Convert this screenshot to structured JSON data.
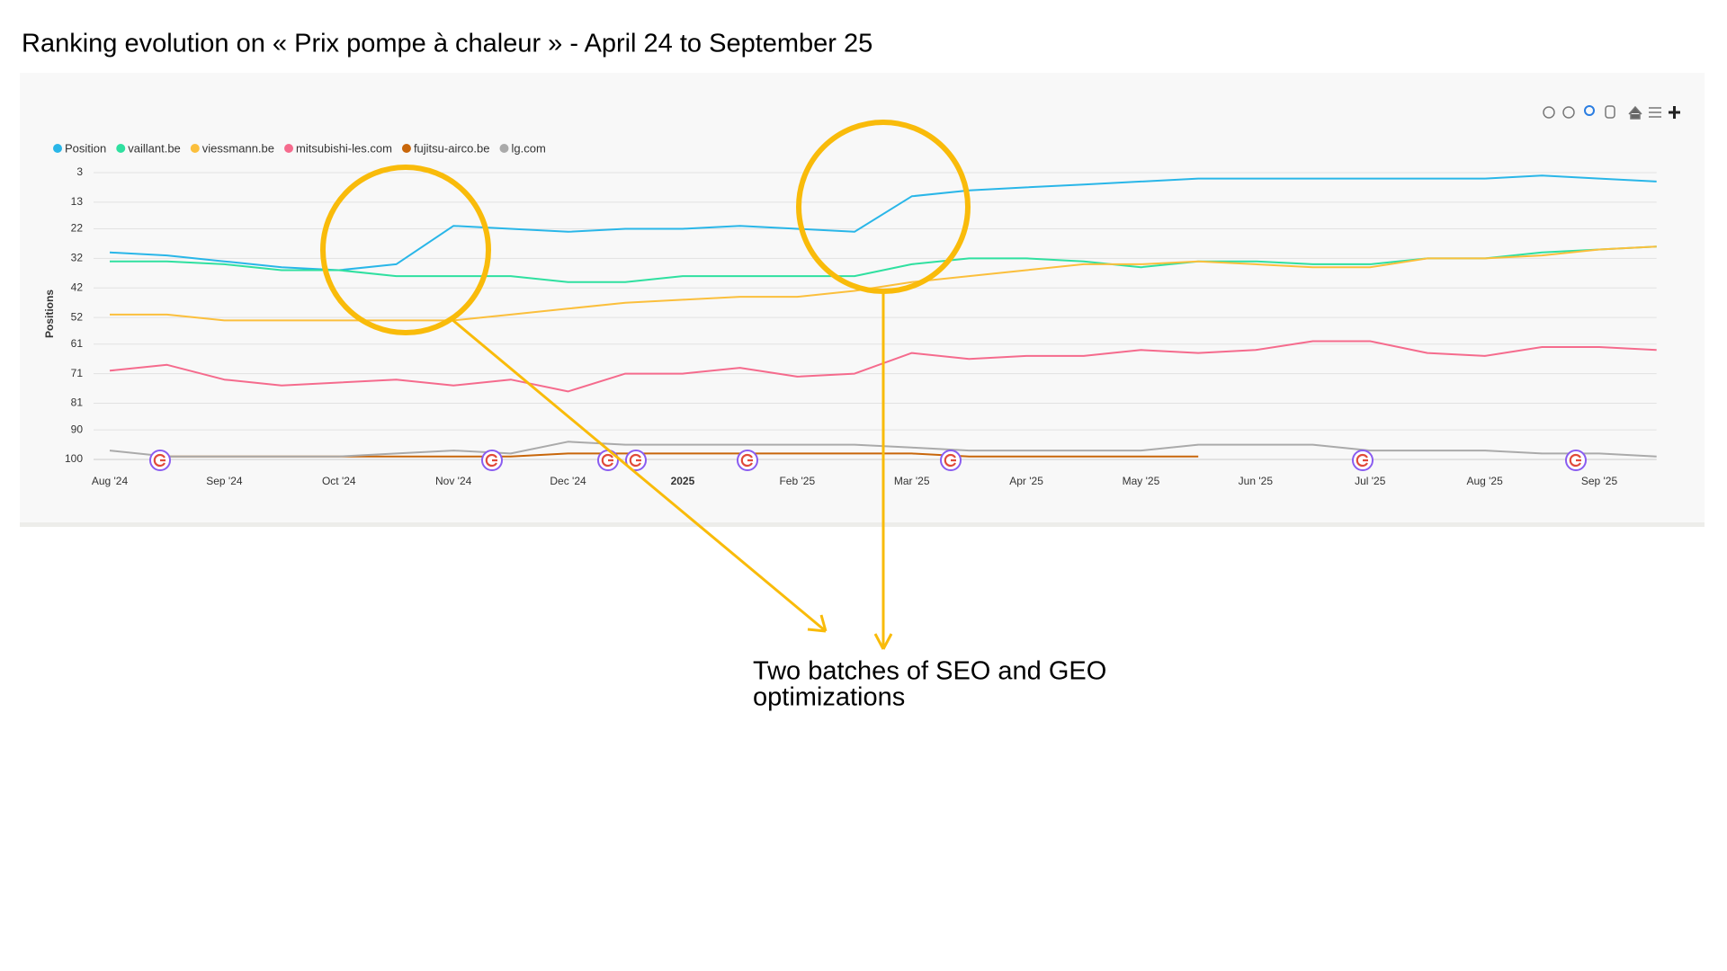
{
  "chart_data": {
    "type": "line",
    "title": "Ranking evolution on « Prix pompe à chaleur » - April 24 to September 25",
    "y_label": "Positions",
    "annotation": [
      "Two batches of SEO and GEO",
      "optimizations"
    ],
    "categories": [
      "Aug '24",
      null,
      "Sep '24",
      null,
      "Oct '24",
      null,
      "Nov '24",
      null,
      "Dec '24",
      null,
      "2025",
      null,
      "Feb '25",
      null,
      "Mar '25",
      null,
      "Apr '25",
      null,
      "May '25",
      null,
      "Jun '25",
      null,
      "Jul '25",
      null,
      "Aug '25",
      null,
      "Sep '25",
      null
    ],
    "ylim": [
      100,
      3
    ],
    "yticks": [
      3,
      13,
      22,
      32,
      42,
      52,
      61,
      71,
      81,
      90,
      100
    ],
    "grid": true,
    "series": [
      {
        "name": "Position",
        "color": "#29b6e8",
        "values": [
          30,
          31,
          33,
          35,
          36,
          34,
          21,
          22,
          23,
          22,
          22,
          21,
          22,
          23,
          11,
          9,
          8,
          7,
          6,
          5,
          5,
          5,
          5,
          5,
          5,
          4,
          5,
          6
        ]
      },
      {
        "name": "vaillant.be",
        "color": "#2fe0a0",
        "values": [
          33,
          33,
          34,
          36,
          36,
          38,
          38,
          38,
          40,
          40,
          38,
          38,
          38,
          38,
          34,
          32,
          32,
          33,
          35,
          33,
          33,
          34,
          34,
          32,
          32,
          30,
          29,
          28
        ]
      },
      {
        "name": "viessmann.be",
        "color": "#fbbf3c",
        "values": [
          51,
          51,
          53,
          53,
          53,
          53,
          53,
          51,
          49,
          47,
          46,
          45,
          45,
          43,
          40,
          38,
          36,
          34,
          34,
          33,
          34,
          35,
          35,
          32,
          32,
          31,
          29,
          28
        ]
      },
      {
        "name": "mitsubishi-les.com",
        "color": "#f56b8d",
        "values": [
          70,
          68,
          73,
          75,
          74,
          73,
          75,
          73,
          77,
          71,
          71,
          69,
          72,
          71,
          64,
          66,
          65,
          65,
          63,
          64,
          63,
          60,
          60,
          64,
          65,
          62,
          62,
          63
        ]
      },
      {
        "name": "fujitsu-airco.be",
        "color": "#c8660a",
        "values": [
          null,
          99,
          99,
          99,
          99,
          99,
          99,
          99,
          98,
          98,
          98,
          98,
          98,
          98,
          98,
          99,
          99,
          99,
          99,
          99,
          null,
          null,
          null,
          null,
          null,
          null,
          null,
          null
        ]
      },
      {
        "name": "lg.com",
        "color": "#aaaaaa",
        "values": [
          97,
          99,
          99,
          99,
          99,
          98,
          97,
          98,
          94,
          95,
          95,
          95,
          95,
          95,
          96,
          97,
          97,
          97,
          97,
          95,
          95,
          95,
          97,
          97,
          97,
          98,
          98,
          99
        ]
      }
    ],
    "legend": "top-left"
  }
}
